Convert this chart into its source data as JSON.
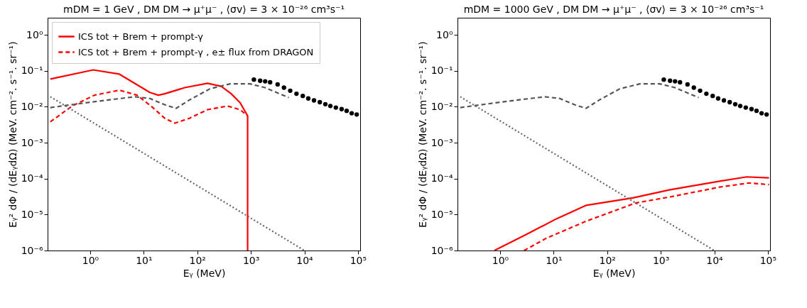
{
  "chart_data": [
    {
      "type": "line",
      "title": "mDM = 1 GeV ,  DM DM → μ⁺μ⁻ ,  ⟨σv⟩ = 3 × 10⁻²⁶ cm³s⁻¹",
      "xlabel": "Eᵧ (MeV)",
      "ylabel": "Eᵧ² dΦ / (dEᵧdΩ) (MeV. cm⁻². s⁻¹. sr⁻¹)",
      "log": "xy",
      "grid": false,
      "legend": "top left",
      "xlim": [
        0.16,
        110000
      ],
      "ylim": [
        1e-06,
        3
      ],
      "xticks": [
        {
          "value": 1,
          "label": "10⁰"
        },
        {
          "value": 10,
          "label": "10¹"
        },
        {
          "value": 100,
          "label": "10²"
        },
        {
          "value": 1000,
          "label": "10³"
        },
        {
          "value": 10000,
          "label": "10⁴"
        },
        {
          "value": 100000,
          "label": "10⁵"
        }
      ],
      "yticks": [
        {
          "value": 1e-06,
          "label": "10⁻⁶"
        },
        {
          "value": 1e-05,
          "label": "10⁻⁵"
        },
        {
          "value": 0.0001,
          "label": "10⁻⁴"
        },
        {
          "value": 0.001,
          "label": "10⁻³"
        },
        {
          "value": 0.01,
          "label": "10⁻²"
        },
        {
          "value": 0.1,
          "label": "10⁻¹"
        },
        {
          "value": 1,
          "label": "10⁰"
        }
      ],
      "series": [
        {
          "name": "ICS tot + Brem + prompt-γ",
          "line_style": "solid",
          "color": "#ff0000",
          "x": [
            0.18,
            1.14,
            3.5,
            13,
            18.7,
            24.6,
            58,
            155,
            280,
            430,
            630,
            870,
            870
          ],
          "values": [
            0.059,
            0.106,
            0.081,
            0.025,
            0.021,
            0.023,
            0.034,
            0.045,
            0.037,
            0.023,
            0.013,
            0.0056,
            1e-06
          ]
        },
        {
          "name": "ICS tot + Brem + prompt-γ , e± flux from DRAGON",
          "line_style": "dashed",
          "color": "#ff0000",
          "x": [
            0.18,
            0.46,
            1.2,
            3.5,
            7.5,
            14.4,
            24.6,
            38,
            72,
            155,
            365,
            630,
            870
          ],
          "values": [
            0.0038,
            0.0105,
            0.021,
            0.029,
            0.021,
            0.0098,
            0.0048,
            0.0035,
            0.0048,
            0.0083,
            0.0105,
            0.0083,
            0.0056
          ]
        },
        {
          "line_style": "dashed",
          "color": "#555555",
          "x": [
            0.18,
            1,
            6.8,
            13,
            24.6,
            40,
            72,
            172,
            410,
            960,
            1850,
            5100
          ],
          "values": [
            0.0095,
            0.0134,
            0.019,
            0.017,
            0.0114,
            0.009,
            0.0156,
            0.0316,
            0.0435,
            0.0435,
            0.034,
            0.018
          ]
        },
        {
          "line_style": "dotted",
          "color": "#666666",
          "x": [
            0.18,
            10000
          ],
          "values": [
            0.019,
            1e-06
          ]
        },
        {
          "type": "scatter",
          "marker": "circle",
          "color": "#000000",
          "x": [
            1140,
            1490,
            1850,
            2290,
            3160,
            4150,
            5430,
            7110,
            9330,
            11800,
            15100,
            19400,
            24600,
            30500,
            38700,
            49500,
            61500,
            76400,
            94800
          ],
          "values": [
            0.057,
            0.053,
            0.051,
            0.048,
            0.042,
            0.034,
            0.028,
            0.023,
            0.02,
            0.017,
            0.015,
            0.0134,
            0.0118,
            0.0105,
            0.0095,
            0.0086,
            0.0077,
            0.0066,
            0.0061
          ]
        }
      ]
    },
    {
      "type": "line",
      "title": "mDM = 1000 GeV ,  DM DM → μ⁺μ⁻ ,  ⟨σv⟩ = 3 × 10⁻²⁶ cm³s⁻¹",
      "xlabel": "Eᵧ (MeV)",
      "ylabel": "Eᵧ² dΦ / (dEᵧdΩ) (MeV. cm⁻². s⁻¹. sr⁻¹)",
      "log": "xy",
      "grid": false,
      "legend": "top left",
      "xlim": [
        0.16,
        110000
      ],
      "ylim": [
        1e-06,
        3
      ],
      "xticks": [
        {
          "value": 1,
          "label": "10⁰"
        },
        {
          "value": 10,
          "label": "10¹"
        },
        {
          "value": 100,
          "label": "10²"
        },
        {
          "value": 1000,
          "label": "10³"
        },
        {
          "value": 10000,
          "label": "10⁴"
        },
        {
          "value": 100000,
          "label": "10⁵"
        }
      ],
      "yticks": [
        {
          "value": 1e-06,
          "label": "10⁻⁶"
        },
        {
          "value": 1e-05,
          "label": "10⁻⁵"
        },
        {
          "value": 0.0001,
          "label": "10⁻⁴"
        },
        {
          "value": 0.001,
          "label": "10⁻³"
        },
        {
          "value": 0.01,
          "label": "10⁻²"
        },
        {
          "value": 0.1,
          "label": "10⁻¹"
        },
        {
          "value": 1,
          "label": "10⁰"
        }
      ],
      "series": [
        {
          "name": "ICS tot + Brem + prompt-γ",
          "line_style": "solid",
          "color": "#ff0000",
          "x": [
            0.78,
            3.1,
            11.2,
            40,
            300,
            1490,
            12500,
            40000,
            105000
          ],
          "values": [
            1e-06,
            2.8e-06,
            7.6e-06,
            1.8e-05,
            2.9e-05,
            4.9e-05,
            8.5e-05,
            0.000112,
            0.000105
          ]
        },
        {
          "name": "ICS tot + Brem + prompt-γ , e± flux from DRAGON",
          "line_style": "dashed",
          "color": "#ff0000",
          "x": [
            2.8,
            7.3,
            40,
            340,
            1490,
            12500,
            45000,
            105000
          ],
          "values": [
            1e-06,
            2.2e-06,
            6.5e-06,
            2.1e-05,
            3.1e-05,
            5.8e-05,
            7.6e-05,
            6.8e-05
          ]
        },
        {
          "line_style": "dashed",
          "color": "#555555",
          "x": [
            0.18,
            1,
            6.8,
            13,
            24.6,
            40,
            72,
            172,
            410,
            960,
            1850,
            5100
          ],
          "values": [
            0.0095,
            0.0134,
            0.019,
            0.017,
            0.0114,
            0.009,
            0.0156,
            0.0316,
            0.0435,
            0.0435,
            0.034,
            0.018
          ]
        },
        {
          "line_style": "dotted",
          "color": "#666666",
          "x": [
            0.18,
            10000
          ],
          "values": [
            0.019,
            1e-06
          ]
        },
        {
          "type": "scatter",
          "marker": "circle",
          "color": "#000000",
          "x": [
            1140,
            1490,
            1850,
            2290,
            3160,
            4150,
            5430,
            7110,
            9330,
            11800,
            15100,
            19400,
            24600,
            30500,
            38700,
            49500,
            61500,
            76400,
            94800
          ],
          "values": [
            0.057,
            0.053,
            0.051,
            0.048,
            0.042,
            0.034,
            0.028,
            0.023,
            0.02,
            0.017,
            0.015,
            0.0134,
            0.0118,
            0.0105,
            0.0095,
            0.0086,
            0.0077,
            0.0066,
            0.0061
          ]
        }
      ]
    }
  ]
}
